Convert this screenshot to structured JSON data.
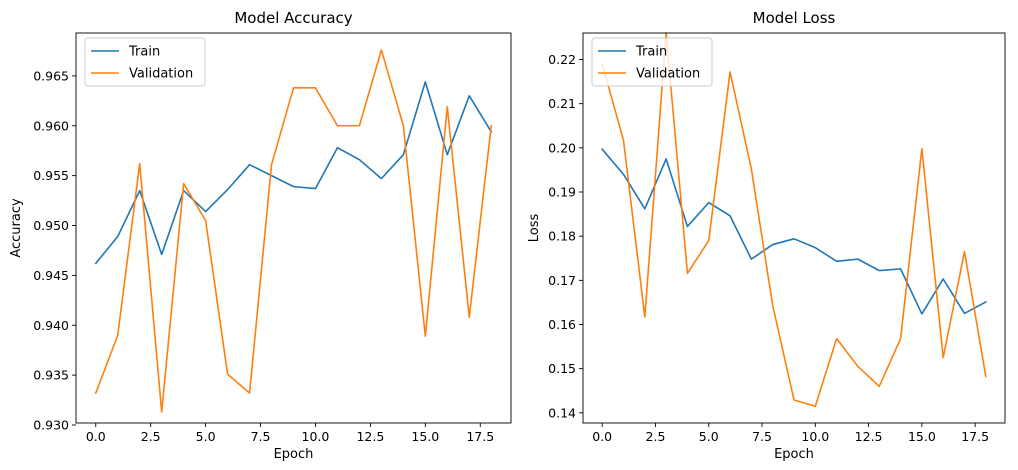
{
  "chart_data": [
    {
      "type": "line",
      "title": "Model Accuracy",
      "xlabel": "Epoch",
      "ylabel": "Accuracy",
      "xlim": [
        -0.9,
        18.9
      ],
      "ylim": [
        0.9302,
        0.9693
      ],
      "xticks": [
        0.0,
        2.5,
        5.0,
        7.5,
        10.0,
        12.5,
        15.0,
        17.5
      ],
      "xtick_labels": [
        "0.0",
        "2.5",
        "5.0",
        "7.5",
        "10.0",
        "12.5",
        "15.0",
        "17.5"
      ],
      "yticks": [
        0.93,
        0.935,
        0.94,
        0.945,
        0.95,
        0.955,
        0.96,
        0.965
      ],
      "ytick_labels": [
        "0.930",
        "0.935",
        "0.940",
        "0.945",
        "0.950",
        "0.955",
        "0.960",
        "0.965"
      ],
      "grid": false,
      "legend_position": "upper-left",
      "x": [
        0,
        1,
        2,
        3,
        4,
        5,
        6,
        7,
        8,
        9,
        10,
        11,
        12,
        13,
        14,
        15,
        16,
        17,
        18
      ],
      "series": [
        {
          "name": "Train",
          "color": "#1f77b4",
          "values": [
            0.9462,
            0.9489,
            0.9535,
            0.9471,
            0.9535,
            0.9514,
            0.9536,
            0.9561,
            0.955,
            0.9539,
            0.9537,
            0.9578,
            0.9566,
            0.9547,
            0.9571,
            0.9644,
            0.9571,
            0.963,
            0.9594
          ]
        },
        {
          "name": "Validation",
          "color": "#ff7f0e",
          "values": [
            0.9332,
            0.939,
            0.9562,
            0.9313,
            0.9542,
            0.9505,
            0.9351,
            0.9332,
            0.9561,
            0.9638,
            0.9638,
            0.96,
            0.96,
            0.9676,
            0.96,
            0.9389,
            0.9619,
            0.9408,
            0.96
          ]
        }
      ]
    },
    {
      "type": "line",
      "title": "Model Loss",
      "xlabel": "Epoch",
      "ylabel": "Loss",
      "xlim": [
        -0.9,
        18.9
      ],
      "ylim": [
        0.1377,
        0.226
      ],
      "xticks": [
        0.0,
        2.5,
        5.0,
        7.5,
        10.0,
        12.5,
        15.0,
        17.5
      ],
      "xtick_labels": [
        "0.0",
        "2.5",
        "5.0",
        "7.5",
        "10.0",
        "12.5",
        "15.0",
        "17.5"
      ],
      "yticks": [
        0.14,
        0.15,
        0.16,
        0.17,
        0.18,
        0.19,
        0.2,
        0.21,
        0.22
      ],
      "ytick_labels": [
        "0.14",
        "0.15",
        "0.16",
        "0.17",
        "0.18",
        "0.19",
        "0.20",
        "0.21",
        "0.22"
      ],
      "grid": false,
      "legend_position": "upper-left",
      "x": [
        0,
        1,
        2,
        3,
        4,
        5,
        6,
        7,
        8,
        9,
        10,
        11,
        12,
        13,
        14,
        15,
        16,
        17,
        18
      ],
      "series": [
        {
          "name": "Train",
          "color": "#1f77b4",
          "values": [
            0.1997,
            0.194,
            0.1862,
            0.1975,
            0.1822,
            0.1876,
            0.1846,
            0.1748,
            0.1781,
            0.1794,
            0.1774,
            0.1743,
            0.1748,
            0.1722,
            0.1726,
            0.1624,
            0.1703,
            0.1625,
            0.1651
          ]
        },
        {
          "name": "Validation",
          "color": "#ff7f0e",
          "values": [
            0.219,
            0.2017,
            0.1617,
            0.226,
            0.1716,
            0.179,
            0.2172,
            0.1952,
            0.1643,
            0.1429,
            0.1415,
            0.1568,
            0.1505,
            0.146,
            0.1568,
            0.1998,
            0.1525,
            0.1765,
            0.1482
          ]
        }
      ]
    }
  ]
}
